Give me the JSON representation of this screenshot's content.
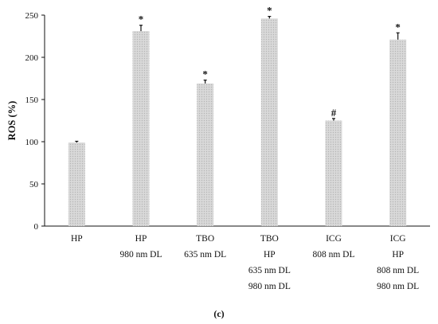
{
  "chart_data": {
    "type": "bar",
    "title": "",
    "panel_label": "(c)",
    "ylabel": "ROS (%)",
    "xlabel": "",
    "ylim": [
      0,
      250
    ],
    "yticks": [
      0,
      50,
      100,
      150,
      200,
      250
    ],
    "grid": false,
    "categories": [
      [
        "HP"
      ],
      [
        "HP",
        "980 nm DL"
      ],
      [
        "TBO",
        "635 nm DL"
      ],
      [
        "TBO",
        "HP",
        "635 nm DL",
        "980 nm DL"
      ],
      [
        "ICG",
        "808 nm DL"
      ],
      [
        "ICG",
        "HP",
        "808 nm DL",
        "980 nm DL"
      ]
    ],
    "values": [
      99,
      231,
      169,
      246,
      125,
      221
    ],
    "errors": [
      1.5,
      7,
      4,
      2.5,
      2.5,
      8
    ],
    "annotations": [
      "",
      "*",
      "*",
      "*",
      "#",
      "*"
    ],
    "colors": {
      "bar_fill": "#d9d9d9",
      "bar_dot": "#b5b5b5",
      "axis": "#111111"
    }
  }
}
